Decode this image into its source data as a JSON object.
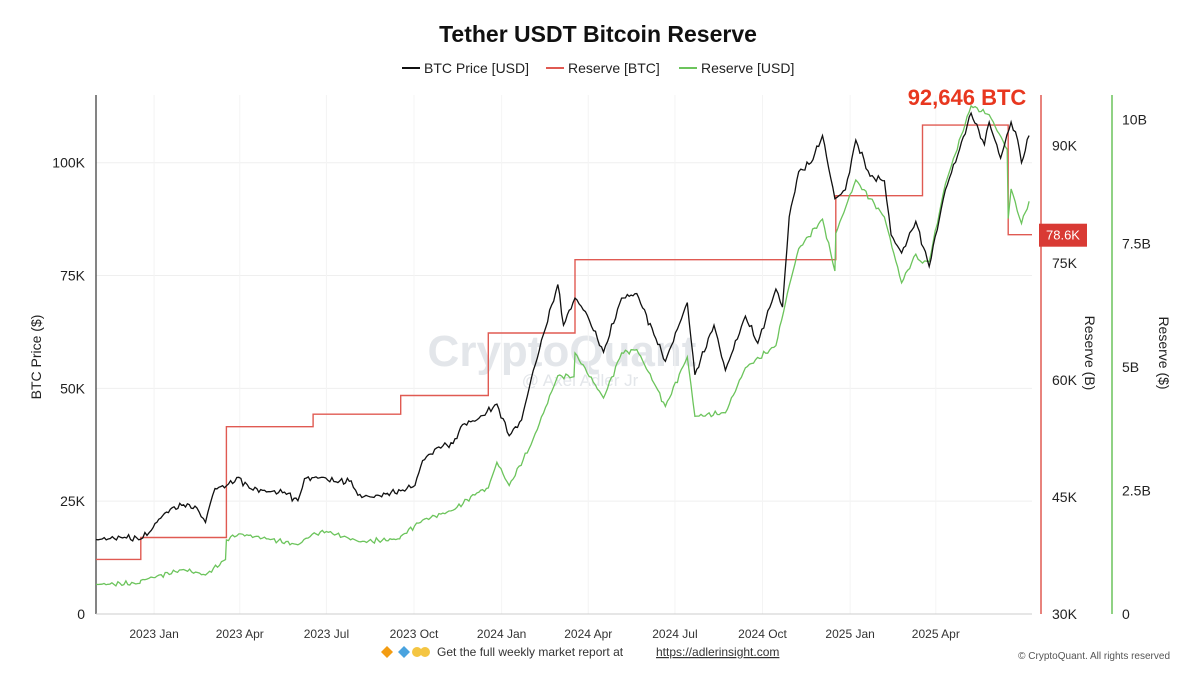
{
  "chart_data": {
    "type": "line",
    "title": "Tether USDT Bitcoin Reserve",
    "legend": [
      "BTC Price [USD]",
      "Reserve [BTC]",
      "Reserve [USD]"
    ],
    "legend_placement": "top-center",
    "colors": {
      "btc_price": "#111111",
      "reserve_btc": "#e05a52",
      "reserve_usd": "#6cc45c",
      "callout": "#e8371f",
      "badge": "#d93a34"
    },
    "grid": true,
    "x_range": [
      "2022-11-15",
      "2025-07-25"
    ],
    "x_ticks": [
      "2023 Jan",
      "2023 Apr",
      "2023 Jul",
      "2023 Oct",
      "2024 Jan",
      "2024 Apr",
      "2024 Jul",
      "2024 Oct",
      "2025 Jan",
      "2025 Apr"
    ],
    "y_left": {
      "label": "BTC Price ($)",
      "range": [
        0,
        115000
      ],
      "ticks": [
        0,
        25000,
        50000,
        75000,
        100000
      ],
      "tick_labels": [
        "0",
        "25K",
        "50K",
        "75K",
        "100K"
      ]
    },
    "y_right_reserve_btc": {
      "label": "Reserve (B)",
      "range": [
        30000,
        96500
      ],
      "ticks": [
        30000,
        45000,
        60000,
        75000,
        90000
      ],
      "tick_labels": [
        "30K",
        "45K",
        "60K",
        "75K",
        "90K"
      ]
    },
    "y_right_reserve_usd": {
      "label": "Reserve ($)",
      "range": [
        0,
        10500000000
      ],
      "ticks": [
        0,
        2500000000,
        5000000000,
        7500000000,
        10000000000
      ],
      "tick_labels": [
        "0",
        "2.5B",
        "5B",
        "7.5B",
        "10B"
      ]
    },
    "series": [
      {
        "name": "BTC Price [USD]",
        "axis": "left",
        "points": [
          [
            "2022-11-15",
            16500
          ],
          [
            "2022-12-15",
            17000
          ],
          [
            "2023-01-01",
            16600
          ],
          [
            "2023-01-12",
            18500
          ],
          [
            "2023-01-20",
            21000
          ],
          [
            "2023-02-01",
            23200
          ],
          [
            "2023-02-15",
            24200
          ],
          [
            "2023-03-01",
            23500
          ],
          [
            "2023-03-10",
            20300
          ],
          [
            "2023-03-15",
            24500
          ],
          [
            "2023-03-20",
            27800
          ],
          [
            "2023-04-01",
            28400
          ],
          [
            "2023-04-14",
            30300
          ],
          [
            "2023-04-25",
            27900
          ],
          [
            "2023-05-15",
            27100
          ],
          [
            "2023-06-01",
            27000
          ],
          [
            "2023-06-15",
            25100
          ],
          [
            "2023-06-22",
            30000
          ],
          [
            "2023-07-10",
            30300
          ],
          [
            "2023-07-25",
            29300
          ],
          [
            "2023-08-10",
            29500
          ],
          [
            "2023-08-17",
            26300
          ],
          [
            "2023-09-01",
            25900
          ],
          [
            "2023-09-15",
            26600
          ],
          [
            "2023-10-01",
            27300
          ],
          [
            "2023-10-16",
            28500
          ],
          [
            "2023-10-24",
            34000
          ],
          [
            "2023-11-10",
            37000
          ],
          [
            "2023-11-25",
            37800
          ],
          [
            "2023-12-05",
            42000
          ],
          [
            "2023-12-20",
            43000
          ],
          [
            "2024-01-10",
            46500
          ],
          [
            "2024-01-23",
            39500
          ],
          [
            "2024-02-05",
            43000
          ],
          [
            "2024-02-15",
            52000
          ],
          [
            "2024-02-28",
            62000
          ],
          [
            "2024-03-14",
            73000
          ],
          [
            "2024-03-20",
            64000
          ],
          [
            "2024-04-01",
            70000
          ],
          [
            "2024-04-12",
            67000
          ],
          [
            "2024-05-01",
            58000
          ],
          [
            "2024-05-20",
            70000
          ],
          [
            "2024-06-05",
            71000
          ],
          [
            "2024-06-25",
            61000
          ],
          [
            "2024-07-05",
            56000
          ],
          [
            "2024-07-28",
            69000
          ],
          [
            "2024-08-05",
            53000
          ],
          [
            "2024-08-25",
            64000
          ],
          [
            "2024-09-06",
            54000
          ],
          [
            "2024-09-27",
            66000
          ],
          [
            "2024-10-10",
            60000
          ],
          [
            "2024-10-29",
            72000
          ],
          [
            "2024-11-05",
            68000
          ],
          [
            "2024-11-12",
            88000
          ],
          [
            "2024-11-22",
            98000
          ],
          [
            "2024-12-05",
            100000
          ],
          [
            "2024-12-17",
            106000
          ],
          [
            "2024-12-30",
            92000
          ],
          [
            "2025-01-10",
            94000
          ],
          [
            "2025-01-21",
            105000
          ],
          [
            "2025-02-05",
            97000
          ],
          [
            "2025-02-20",
            96000
          ],
          [
            "2025-02-27",
            84000
          ],
          [
            "2025-03-10",
            80000
          ],
          [
            "2025-03-25",
            87000
          ],
          [
            "2025-04-08",
            77000
          ],
          [
            "2025-04-25",
            94000
          ],
          [
            "2025-05-10",
            103000
          ],
          [
            "2025-05-22",
            111000
          ],
          [
            "2025-06-05",
            104000
          ],
          [
            "2025-06-10",
            109000
          ],
          [
            "2025-06-22",
            101000
          ],
          [
            "2025-07-03",
            109000
          ],
          [
            "2025-07-10",
            105000
          ],
          [
            "2025-07-14",
            100000
          ],
          [
            "2025-07-22",
            106000
          ]
        ]
      },
      {
        "name": "Reserve [BTC]",
        "axis": "right_btc",
        "step": true,
        "points": [
          [
            "2022-11-15",
            37000
          ],
          [
            "2023-01-01",
            37000
          ],
          [
            "2023-01-01",
            39800
          ],
          [
            "2023-04-01",
            39800
          ],
          [
            "2023-04-01",
            54000
          ],
          [
            "2023-07-01",
            54000
          ],
          [
            "2023-07-01",
            55600
          ],
          [
            "2023-10-01",
            55600
          ],
          [
            "2023-10-01",
            58000
          ],
          [
            "2024-01-01",
            58000
          ],
          [
            "2024-01-01",
            66000
          ],
          [
            "2024-04-01",
            66000
          ],
          [
            "2024-04-01",
            75400
          ],
          [
            "2024-12-31",
            75400
          ],
          [
            "2024-12-31",
            83600
          ],
          [
            "2025-04-01",
            83600
          ],
          [
            "2025-04-01",
            92646
          ],
          [
            "2025-06-30",
            92646
          ],
          [
            "2025-06-30",
            78600
          ],
          [
            "2025-07-25",
            78600
          ]
        ]
      },
      {
        "name": "Reserve [USD]",
        "axis": "right_usd",
        "points": [
          [
            "2022-11-15",
            600000000
          ],
          [
            "2022-12-31",
            620000000
          ],
          [
            "2023-01-01",
            680000000
          ],
          [
            "2023-02-15",
            900000000
          ],
          [
            "2023-03-10",
            790000000
          ],
          [
            "2023-03-31",
            1100000000
          ],
          [
            "2023-04-01",
            1500000000
          ],
          [
            "2023-04-14",
            1620000000
          ],
          [
            "2023-05-15",
            1520000000
          ],
          [
            "2023-06-15",
            1400000000
          ],
          [
            "2023-06-30",
            1610000000
          ],
          [
            "2023-07-15",
            1670000000
          ],
          [
            "2023-08-20",
            1460000000
          ],
          [
            "2023-09-30",
            1520000000
          ],
          [
            "2023-10-01",
            1570000000
          ],
          [
            "2023-10-24",
            1900000000
          ],
          [
            "2023-11-25",
            2100000000
          ],
          [
            "2023-12-20",
            2450000000
          ],
          [
            "2024-01-01",
            2550000000
          ],
          [
            "2024-01-10",
            3070000000
          ],
          [
            "2024-01-23",
            2600000000
          ],
          [
            "2024-02-15",
            3430000000
          ],
          [
            "2024-03-14",
            4820000000
          ],
          [
            "2024-03-31",
            4800000000
          ],
          [
            "2024-04-01",
            5280000000
          ],
          [
            "2024-05-01",
            4370000000
          ],
          [
            "2024-05-20",
            5280000000
          ],
          [
            "2024-06-05",
            5350000000
          ],
          [
            "2024-06-25",
            4600000000
          ],
          [
            "2024-07-05",
            4200000000
          ],
          [
            "2024-07-28",
            5200000000
          ],
          [
            "2024-08-05",
            4000000000
          ],
          [
            "2024-09-06",
            4070000000
          ],
          [
            "2024-09-27",
            4980000000
          ],
          [
            "2024-10-29",
            5430000000
          ],
          [
            "2024-11-12",
            6640000000
          ],
          [
            "2024-11-22",
            7390000000
          ],
          [
            "2024-12-17",
            7990000000
          ],
          [
            "2024-12-30",
            6940000000
          ],
          [
            "2024-12-31",
            7700000000
          ],
          [
            "2025-01-21",
            8780000000
          ],
          [
            "2025-02-20",
            8030000000
          ],
          [
            "2025-03-10",
            6700000000
          ],
          [
            "2025-03-25",
            7280000000
          ],
          [
            "2025-04-01",
            7100000000
          ],
          [
            "2025-04-08",
            7130000000
          ],
          [
            "2025-04-25",
            8700000000
          ],
          [
            "2025-05-22",
            10280000000
          ],
          [
            "2025-06-10",
            10100000000
          ],
          [
            "2025-06-29",
            9400000000
          ],
          [
            "2025-06-30",
            8000000000
          ],
          [
            "2025-07-03",
            8600000000
          ],
          [
            "2025-07-14",
            7900000000
          ],
          [
            "2025-07-22",
            8350000000
          ]
        ]
      }
    ],
    "annotations": {
      "reserve_callout": "92,646 BTC",
      "last_value_badge": "78.6K"
    }
  },
  "watermark": {
    "brand": "CryptoQuant",
    "handle": "@ Axel Adler Jr"
  },
  "footer": {
    "icons": [
      "orange-diamond",
      "blue-diamond",
      "raised-hands"
    ],
    "text": "Get the full weekly market report at",
    "link": "https://adlerinsight.com",
    "copyright": "© CryptoQuant. All rights reserved"
  }
}
